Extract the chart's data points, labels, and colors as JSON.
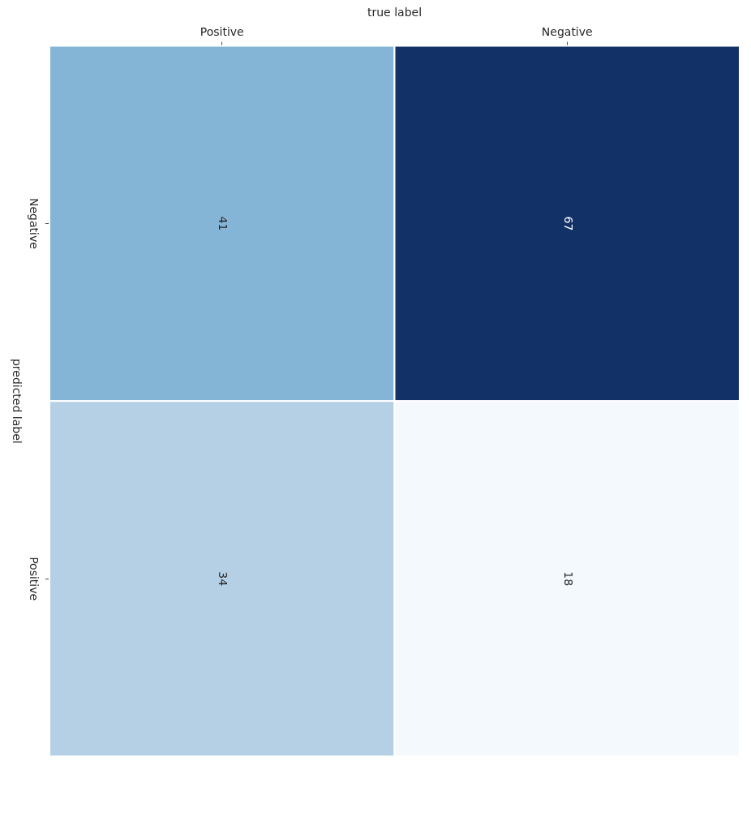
{
  "chart_data": {
    "type": "heatmap",
    "xlabel": "true label",
    "ylabel": "predicted label",
    "categories": [
      "Positive",
      "Negative"
    ],
    "y_categories": [
      "Negative",
      "Positive"
    ],
    "cells": [
      [
        41,
        67
      ],
      [
        34,
        18
      ]
    ],
    "colors": [
      [
        "#84b5d6",
        "#123167"
      ],
      [
        "#b5d0e5",
        "#f4f9fe"
      ]
    ],
    "data_labels": true
  }
}
